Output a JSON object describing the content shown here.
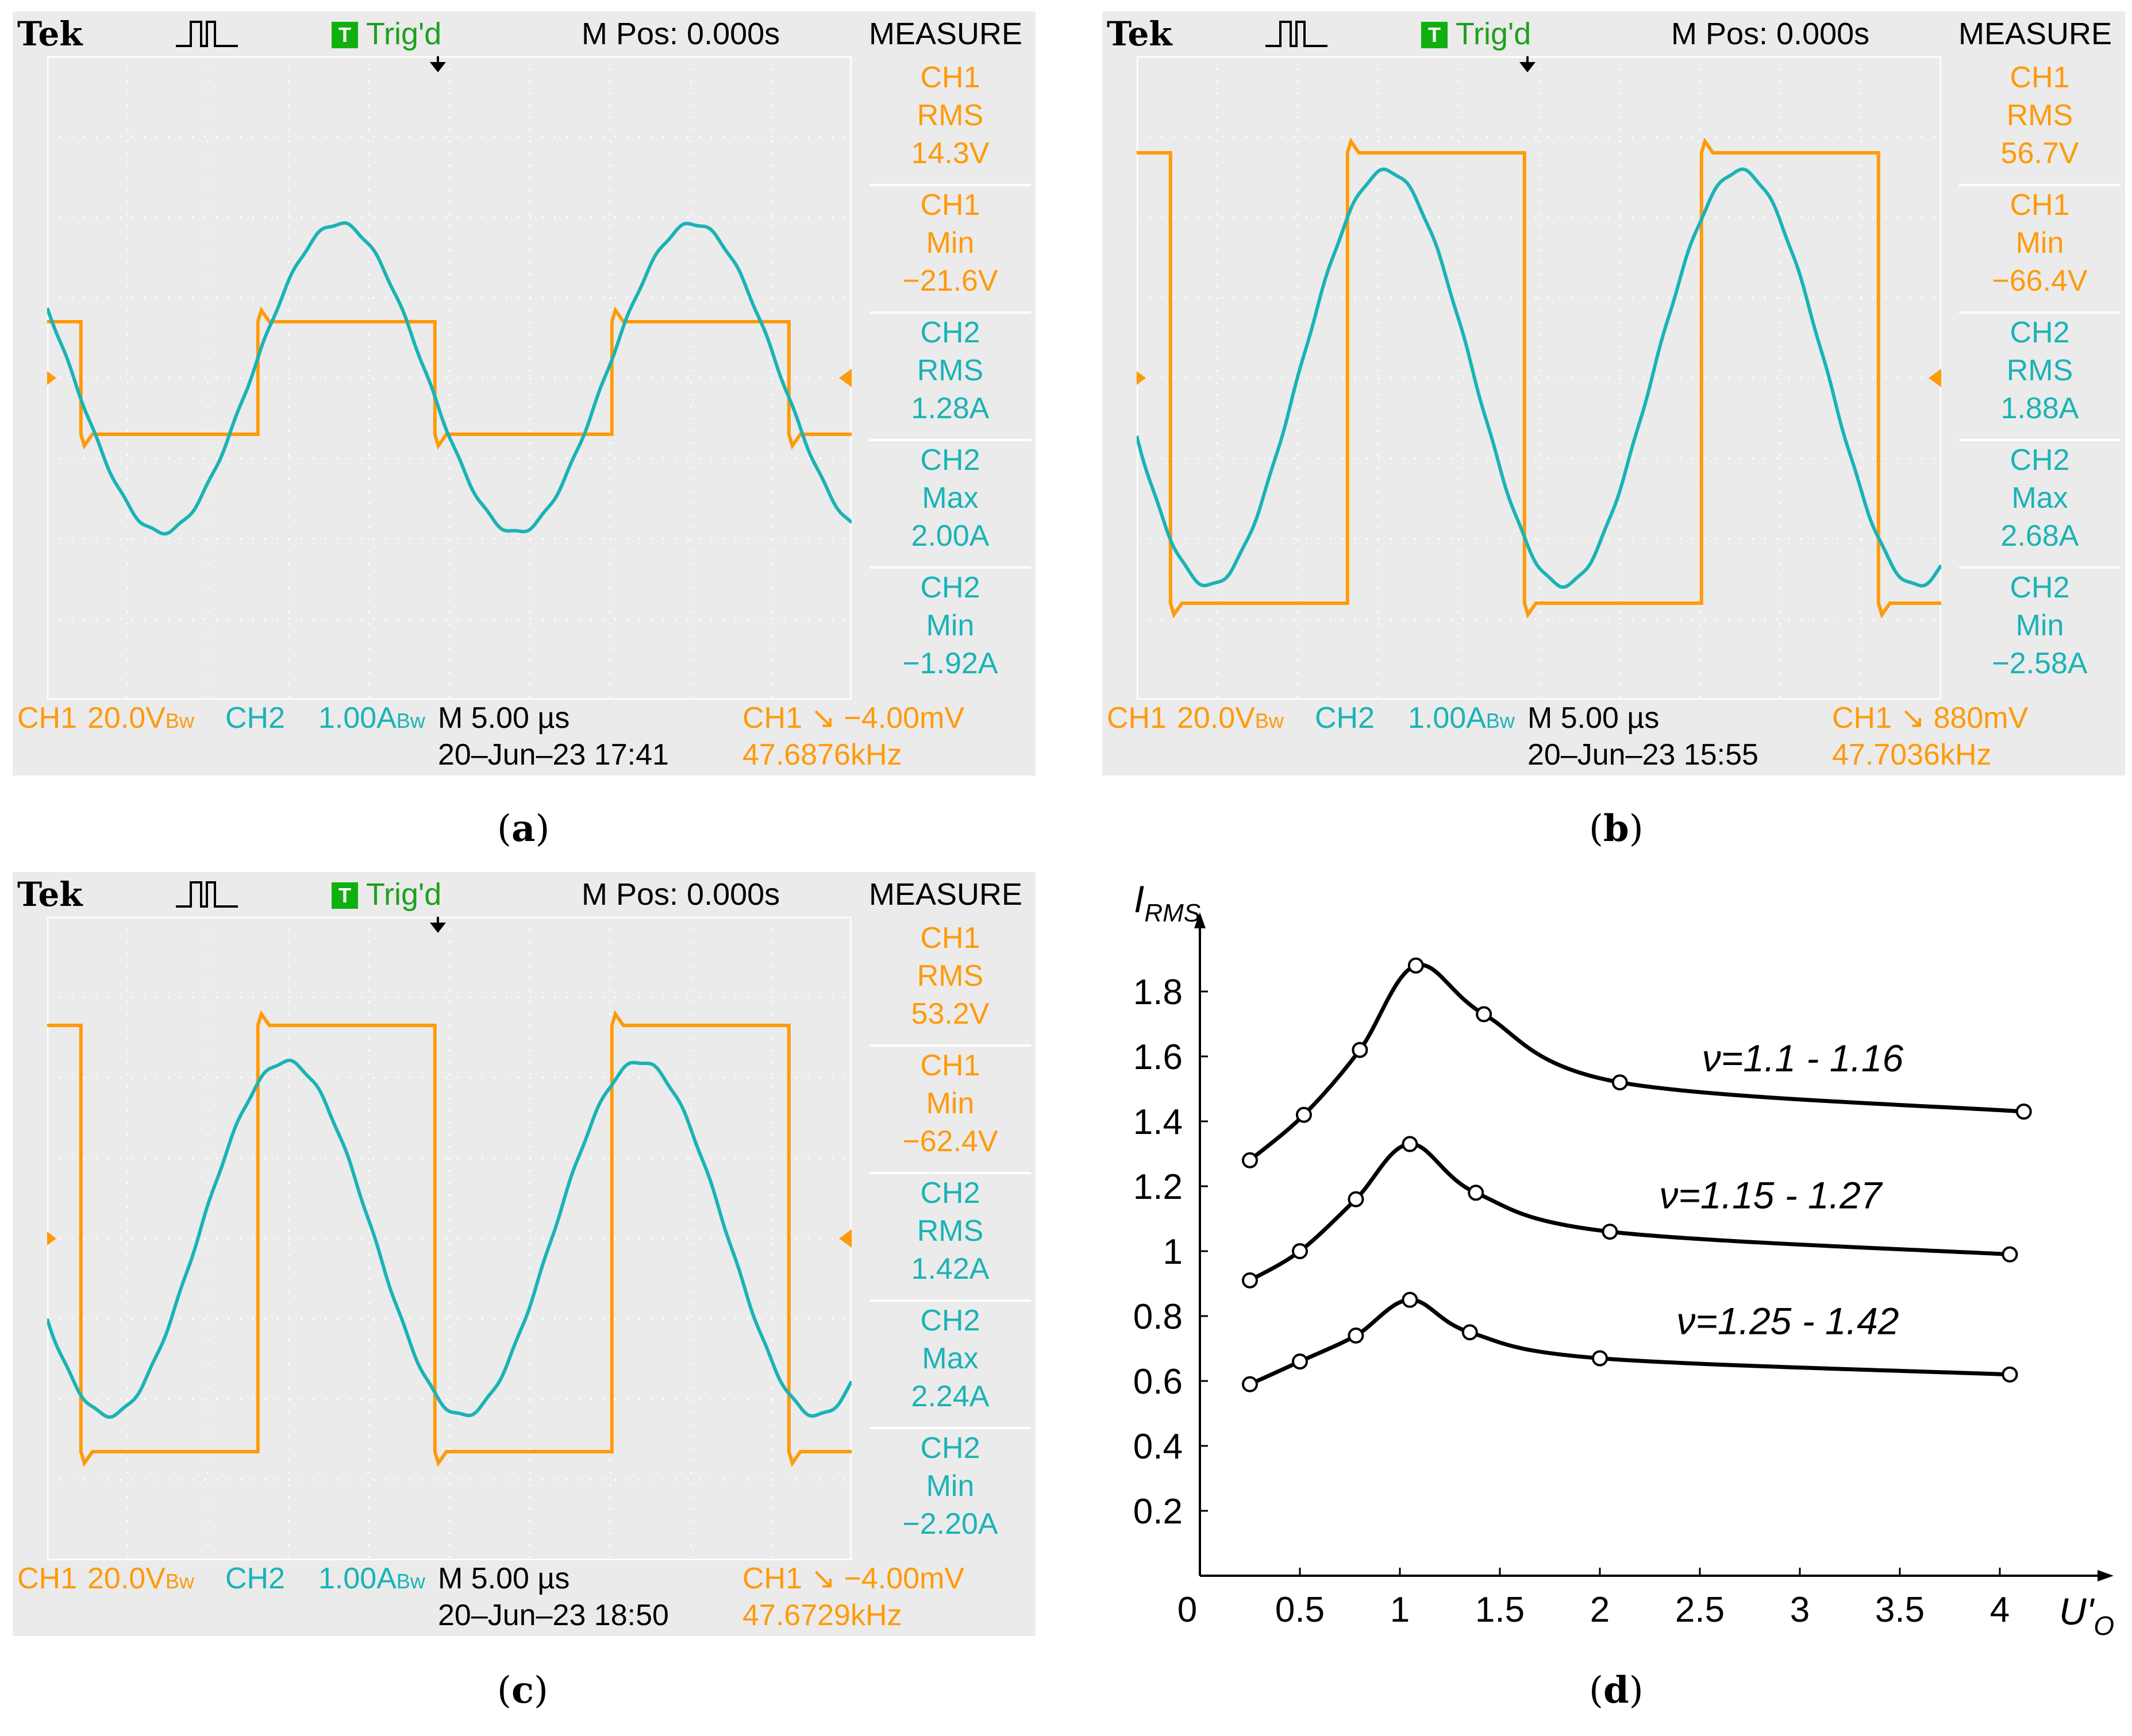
{
  "scopes": {
    "a": {
      "caption": "a",
      "brand": "Tek",
      "trigger_label": "Trig'd",
      "trigger_box": "T",
      "mpos": "M Pos: 0.000s",
      "measure_title": "MEASURE",
      "measurements": [
        {
          "ch": "CH1",
          "param": "RMS",
          "value": "14.3V",
          "color": "#ff9a0a"
        },
        {
          "ch": "CH1",
          "param": "Min",
          "value": "−21.6V",
          "color": "#ff9a0a"
        },
        {
          "ch": "CH2",
          "param": "RMS",
          "value": "1.28A",
          "color": "#1ab3b6"
        },
        {
          "ch": "CH2",
          "param": "Max",
          "value": "2.00A",
          "color": "#1ab3b6"
        },
        {
          "ch": "CH2",
          "param": "Min",
          "value": "−1.92A",
          "color": "#1ab3b6"
        }
      ],
      "footer": {
        "ch1": "CH1",
        "ch1_scale": "20.0V",
        "ch1_bw": "Bw",
        "ch2": "CH2",
        "ch2_scale": "1.00A",
        "ch2_bw": "Bw",
        "timebase": "M 5.00 µs",
        "datetime": "20–Jun–23 17:41",
        "trig": "CH1 ↘ −4.00mV",
        "freq": "47.6876kHz"
      },
      "waveform_divisions": {
        "ch1_high": 0.7,
        "ch1_low": -0.7,
        "ch2_amp": 1.92,
        "ch2_peak": 2.0,
        "ch2_phase_periods": 0.1
      }
    },
    "b": {
      "caption": "b",
      "brand": "Tek",
      "trigger_label": "Trig'd",
      "trigger_box": "T",
      "mpos": "M Pos: 0.000s",
      "measure_title": "MEASURE",
      "measurements": [
        {
          "ch": "CH1",
          "param": "RMS",
          "value": "56.7V",
          "color": "#ff9a0a"
        },
        {
          "ch": "CH1",
          "param": "Min",
          "value": "−66.4V",
          "color": "#ff9a0a"
        },
        {
          "ch": "CH2",
          "param": "RMS",
          "value": "1.88A",
          "color": "#1ab3b6"
        },
        {
          "ch": "CH2",
          "param": "Max",
          "value": "2.68A",
          "color": "#1ab3b6"
        },
        {
          "ch": "CH2",
          "param": "Min",
          "value": "−2.58A",
          "color": "#1ab3b6"
        }
      ],
      "footer": {
        "ch1": "CH1",
        "ch1_scale": "20.0V",
        "ch1_bw": "Bw",
        "ch2": "CH2",
        "ch2_scale": "1.00A",
        "ch2_bw": "Bw",
        "timebase": "M 5.00 µs",
        "datetime": "20–Jun–23 15:55",
        "trig": "CH1 ↘ 880mV",
        "freq": "47.7036kHz"
      },
      "waveform_divisions": {
        "ch1_high": 2.8,
        "ch1_low": -2.8,
        "ch2_amp": 2.58,
        "ch2_peak": 2.68,
        "ch2_phase_periods": 0.22
      }
    },
    "c": {
      "caption": "c",
      "brand": "Tek",
      "trigger_label": "Trig'd",
      "trigger_box": "T",
      "mpos": "M Pos: 0.000s",
      "measure_title": "MEASURE",
      "measurements": [
        {
          "ch": "CH1",
          "param": "RMS",
          "value": "53.2V",
          "color": "#ff9a0a"
        },
        {
          "ch": "CH1",
          "param": "Min",
          "value": "−62.4V",
          "color": "#ff9a0a"
        },
        {
          "ch": "CH2",
          "param": "RMS",
          "value": "1.42A",
          "color": "#1ab3b6"
        },
        {
          "ch": "CH2",
          "param": "Max",
          "value": "2.24A",
          "color": "#1ab3b6"
        },
        {
          "ch": "CH2",
          "param": "Min",
          "value": "−2.20A",
          "color": "#1ab3b6"
        }
      ],
      "footer": {
        "ch1": "CH1",
        "ch1_scale": "20.0V",
        "ch1_bw": "Bw",
        "ch2": "CH2",
        "ch2_scale": "1.00A",
        "ch2_bw": "Bw",
        "timebase": "M 5.00 µs",
        "datetime": "20–Jun–23 18:50",
        "trig": "CH1 ↘ −4.00mV",
        "freq": "47.6729kHz"
      },
      "waveform_divisions": {
        "ch1_high": 2.65,
        "ch1_low": -2.65,
        "ch2_amp": 2.2,
        "ch2_peak": 2.24,
        "ch2_phase_periods": 0.25
      }
    }
  },
  "colors": {
    "ch1": "#ff9a0a",
    "ch2": "#1ab3b6",
    "grid": "#ffffff",
    "axis": "#000000"
  },
  "chart_data": {
    "type": "line",
    "caption": "d",
    "ylabel": "I",
    "ylabel_sub": "RMS",
    "xlabel": "U'",
    "xlabel_sub": "O",
    "xlim": [
      0,
      4.5
    ],
    "ylim": [
      0,
      2.0
    ],
    "xticks": [
      "0.5",
      "1",
      "1.5",
      "2",
      "2.5",
      "3",
      "3.5",
      "4"
    ],
    "xtick_values": [
      0.5,
      1,
      1.5,
      2,
      2.5,
      3,
      3.5,
      4
    ],
    "origin_label": "0",
    "yticks": [
      "0.2",
      "0.4",
      "0.6",
      "0.8",
      "1",
      "1.2",
      "1.4",
      "1.6",
      "1.8"
    ],
    "ytick_values": [
      0.2,
      0.4,
      0.6,
      0.8,
      1.0,
      1.2,
      1.4,
      1.6,
      1.8
    ],
    "series": [
      {
        "name": "ν=1.1 - 1.16",
        "x": [
          0.25,
          0.52,
          0.8,
          1.08,
          1.42,
          2.1,
          4.12
        ],
        "y": [
          1.28,
          1.42,
          1.62,
          1.88,
          1.73,
          1.52,
          1.43
        ]
      },
      {
        "name": "ν=1.15 - 1.27",
        "x": [
          0.25,
          0.5,
          0.78,
          1.05,
          1.38,
          2.05,
          4.05
        ],
        "y": [
          0.91,
          1.0,
          1.16,
          1.33,
          1.18,
          1.06,
          0.99
        ]
      },
      {
        "name": "ν=1.25 - 1.42",
        "x": [
          0.25,
          0.5,
          0.78,
          1.05,
          1.35,
          2.0,
          4.05
        ],
        "y": [
          0.59,
          0.66,
          0.74,
          0.85,
          0.75,
          0.67,
          0.62
        ]
      }
    ]
  }
}
